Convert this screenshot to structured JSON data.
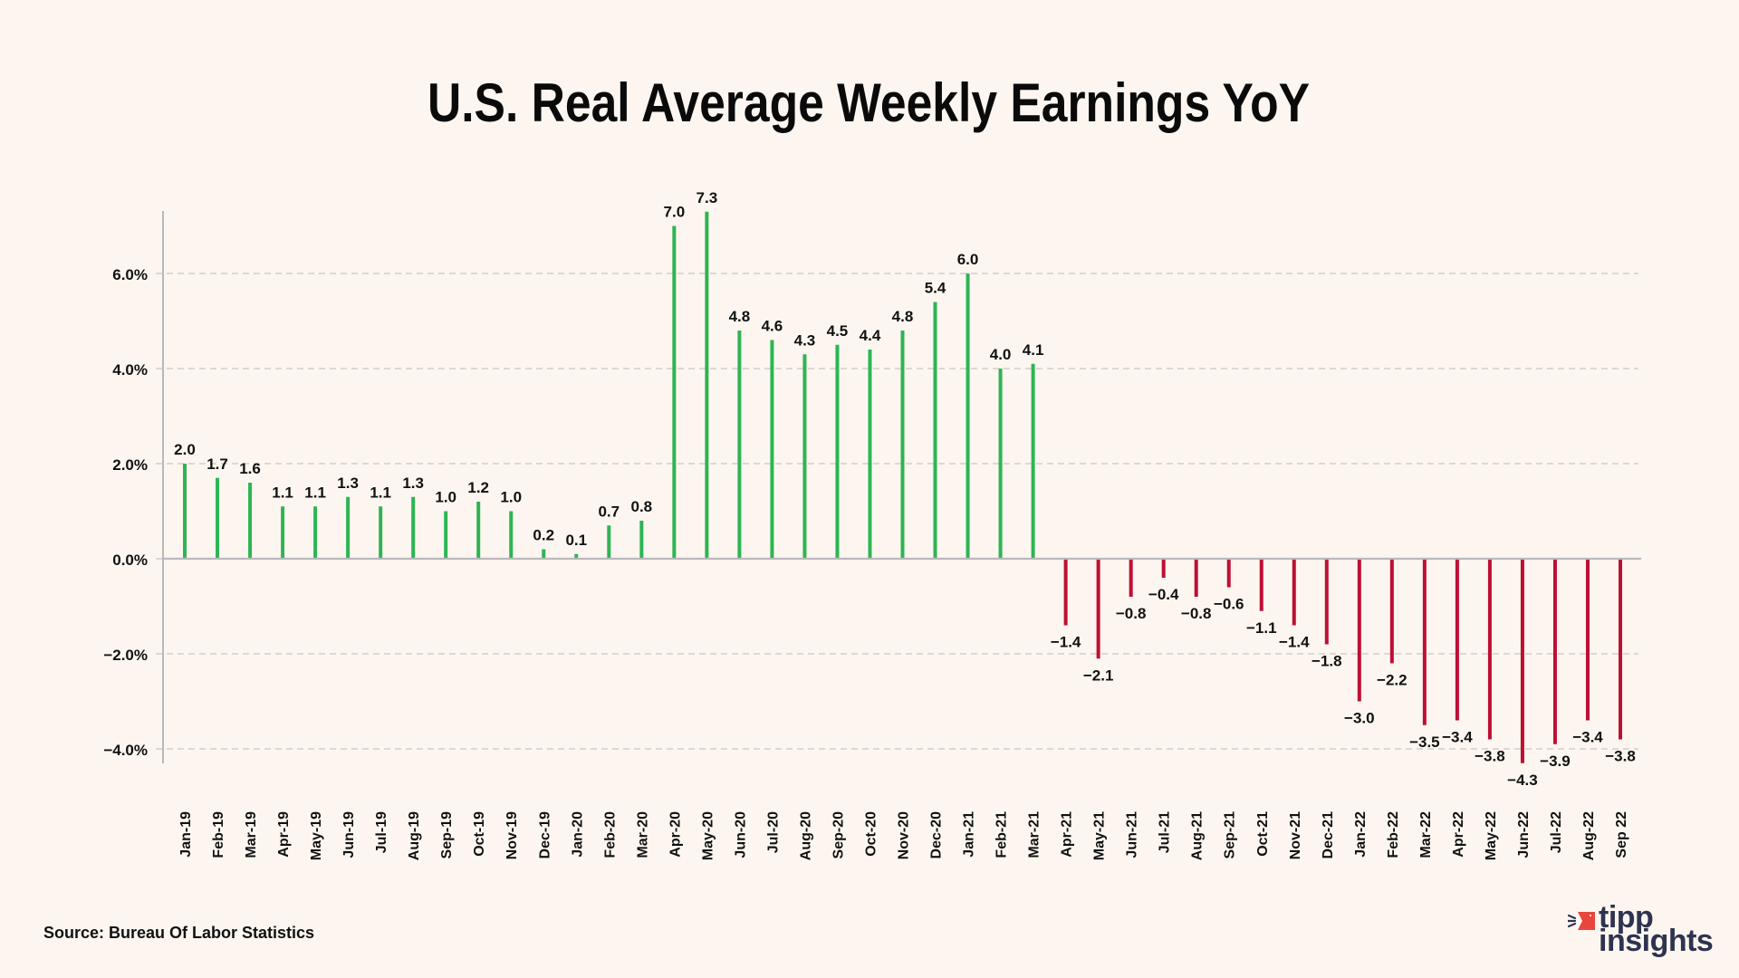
{
  "page": {
    "background": "#FDF6F0",
    "source": "Source: Bureau Of Labor Statistics",
    "logo": {
      "line1": "tipp",
      "line2": "insights",
      "accent_color": "#E8453C",
      "text_color": "#2E3350"
    }
  },
  "chart_data": {
    "type": "bar",
    "title": "U.S. Real Average Weekly Earnings YoY",
    "xlabel": "",
    "ylabel": "",
    "ylim": [
      -4.3,
      7.3
    ],
    "yticks": [
      -4.0,
      -2.0,
      0.0,
      2.0,
      4.0,
      6.0
    ],
    "ytick_labels": [
      "−4.0%",
      "−2.0%",
      "0.0%",
      "2.0%",
      "4.0%",
      "6.0%"
    ],
    "grid": "horizontal-dashed",
    "legend": "none",
    "colors": {
      "positive": "#2DB553",
      "negative": "#BE0F34",
      "axis": "#B8B8BC",
      "grid": "#C9C6C3"
    },
    "categories": [
      "Jan-19",
      "Feb-19",
      "Mar-19",
      "Apr-19",
      "May-19",
      "Jun-19",
      "Jul-19",
      "Aug-19",
      "Sep-19",
      "Oct-19",
      "Nov-19",
      "Dec-19",
      "Jan-20",
      "Feb-20",
      "Mar-20",
      "Apr-20",
      "May-20",
      "Jun-20",
      "Jul-20",
      "Aug-20",
      "Sep-20",
      "Oct-20",
      "Nov-20",
      "Dec-20",
      "Jan-21",
      "Feb-21",
      "Mar-21",
      "Apr-21",
      "May-21",
      "Jun-21",
      "Jul-21",
      "Aug-21",
      "Sep-21",
      "Oct-21",
      "Nov-21",
      "Dec-21",
      "Jan-22",
      "Feb-22",
      "Mar-22",
      "Apr-22",
      "May-22",
      "Jun-22",
      "Jul-22",
      "Aug-22",
      "Sep 22"
    ],
    "values": [
      2.0,
      1.7,
      1.6,
      1.1,
      1.1,
      1.3,
      1.1,
      1.3,
      1.0,
      1.2,
      1.0,
      0.2,
      0.1,
      0.7,
      0.8,
      7.0,
      7.3,
      4.8,
      4.6,
      4.3,
      4.5,
      4.4,
      4.8,
      5.4,
      6.0,
      4.0,
      4.1,
      -1.4,
      -2.1,
      -0.8,
      -0.4,
      -0.8,
      -0.6,
      -1.1,
      -1.4,
      -1.8,
      -3.0,
      -2.2,
      -3.5,
      -3.4,
      -3.8,
      -4.3,
      -3.9,
      -3.4,
      -3.8
    ],
    "data_labels": [
      "2.0",
      "1.7",
      "1.6",
      "1.1",
      "1.1",
      "1.3",
      "1.1",
      "1.3",
      "1.0",
      "1.2",
      "1.0",
      "0.2",
      "0.1",
      "0.7",
      "0.8",
      "7.0",
      "7.3",
      "4.8",
      "4.6",
      "4.3",
      "4.5",
      "4.4",
      "4.8",
      "5.4",
      "6.0",
      "4.0",
      "4.1",
      "−1.4",
      "−2.1",
      "−0.8",
      "−0.4",
      "−0.8",
      "−0.6",
      "−1.1",
      "−1.4",
      "−1.8",
      "−3.0",
      "−2.2",
      "−3.5",
      "−3.4",
      "−3.8",
      "−4.3",
      "−3.9",
      "−3.4",
      "−3.8"
    ]
  }
}
